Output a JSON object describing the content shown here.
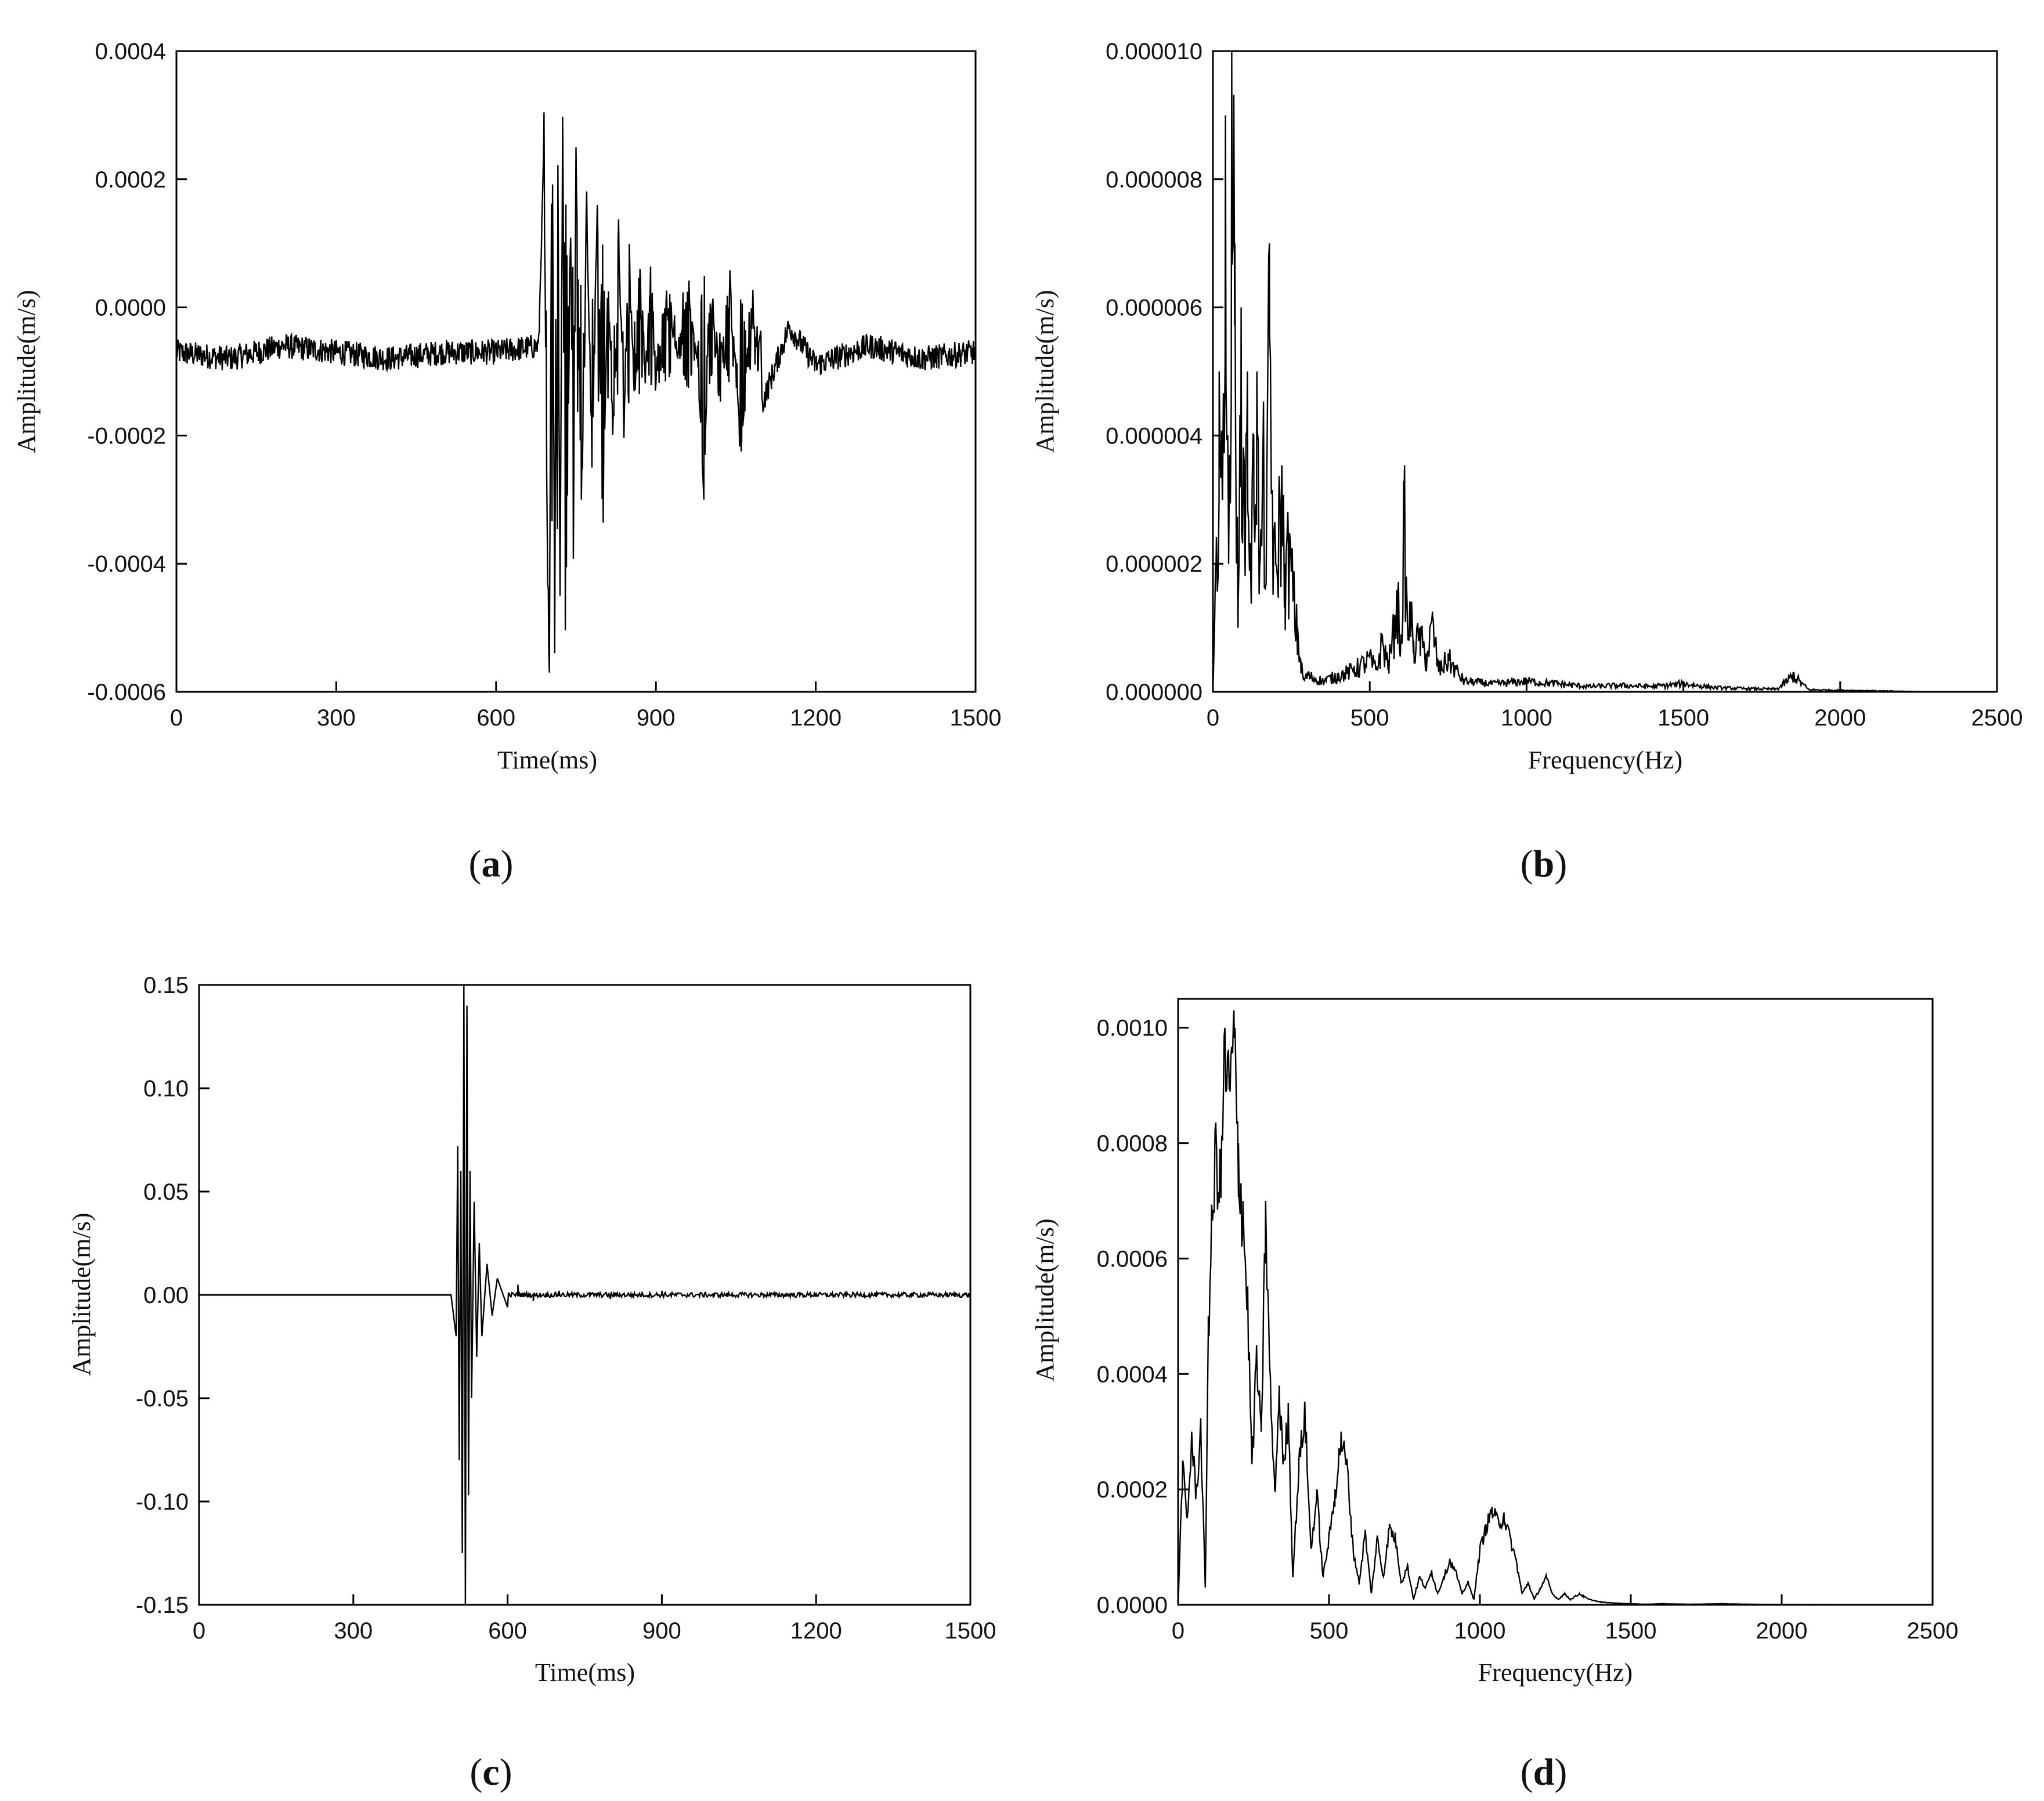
{
  "chart_data": [
    {
      "type": "line",
      "panel_label": "a",
      "xlabel": "Time(ms)",
      "ylabel": "Amplitude(m/s)",
      "xlim": [
        0,
        1500
      ],
      "ylim": [
        -0.0006,
        0.0004
      ],
      "xticks": [
        0,
        300,
        600,
        900,
        1200,
        1500
      ],
      "xtick_labels": [
        "0",
        "300",
        "600",
        "900",
        "1200",
        "1500"
      ],
      "yticks": [
        -0.0006,
        -0.0004,
        -0.0002,
        0.0,
        0.0002,
        0.0004
      ],
      "ytick_labels": [
        "-0.0006",
        "-0.0004",
        "-0.0002",
        "0.0000",
        "0.0002",
        "0.0004"
      ],
      "grid": false,
      "baseline": -7e-05,
      "noise_amplitude": 4e-05,
      "series": [
        {
          "x": [
            0,
            100,
            200,
            300,
            400,
            500,
            600,
            680,
            690,
            695,
            700,
            705,
            710,
            715,
            720,
            725,
            730,
            740,
            745,
            750,
            760,
            770,
            780,
            790,
            800,
            810,
            820,
            830,
            840,
            850,
            860,
            870,
            880,
            890,
            900,
            920,
            940,
            960,
            980,
            990,
            1000,
            1020,
            1040,
            1060,
            1080,
            1100,
            1150,
            1200,
            1300,
            1400,
            1500
          ],
          "y": [
            -7e-05,
            -8e-05,
            -6e-05,
            -7e-05,
            -8e-05,
            -7e-05,
            -7e-05,
            -6e-05,
            0.00027,
            -0.00029,
            -0.00057,
            0.00037,
            -0.00052,
            0.00039,
            -0.00045,
            0.0003,
            -0.00052,
            0.00014,
            -0.0004,
            0.00025,
            -0.0003,
            0.00015,
            -0.00025,
            0.00016,
            -0.00035,
            5e-05,
            -0.0002,
            0.0001,
            -0.00018,
            9e-05,
            -0.00015,
            6e-05,
            -0.0001,
            3e-05,
            -0.00012,
            2e-05,
            -8e-05,
            3e-05,
            -0.0001,
            -0.0003,
            2e-05,
            -0.00012,
            3e-05,
            -0.00022,
            1e-05,
            -0.00015,
            -3e-05,
            -9e-05,
            -6e-05,
            -8e-05,
            -7e-05
          ]
        }
      ]
    },
    {
      "type": "line",
      "panel_label": "b",
      "xlabel": "Frequency(Hz)",
      "ylabel": "Amplitude(m/s)",
      "xlim": [
        0,
        2500
      ],
      "ylim": [
        0,
        1e-05
      ],
      "xticks": [
        0,
        500,
        1000,
        1500,
        2000,
        2500
      ],
      "xtick_labels": [
        "0",
        "500",
        "1000",
        "1500",
        "2000",
        "2500"
      ],
      "yticks": [
        0,
        2e-06,
        4e-06,
        6e-06,
        8e-06,
        1e-05
      ],
      "ytick_labels": [
        "0.000000",
        "0.000002",
        "0.000004",
        "0.000006",
        "0.000008",
        "0.000010"
      ],
      "grid": false,
      "series": [
        {
          "x": [
            0,
            10,
            20,
            30,
            40,
            50,
            60,
            70,
            80,
            90,
            100,
            110,
            120,
            130,
            140,
            150,
            160,
            170,
            180,
            190,
            200,
            210,
            220,
            230,
            240,
            250,
            260,
            270,
            280,
            290,
            300,
            350,
            400,
            450,
            500,
            520,
            540,
            560,
            580,
            590,
            600,
            610,
            620,
            630,
            640,
            660,
            680,
            700,
            720,
            750,
            800,
            900,
            1000,
            1100,
            1200,
            1300,
            1400,
            1500,
            1600,
            1700,
            1800,
            1850,
            1900,
            2000,
            2100,
            2200,
            2300,
            2400,
            2500
          ],
          "y": [
            0,
            2e-06,
            5e-06,
            3e-06,
            9e-06,
            2e-06,
            1e-05,
            7e-06,
            1e-06,
            6e-06,
            3e-06,
            5e-06,
            2e-06,
            4e-06,
            5e-06,
            2e-06,
            4e-06,
            2e-06,
            7e-06,
            3e-06,
            2e-06,
            3e-06,
            3.5e-06,
            2e-06,
            2.5e-06,
            2.2e-06,
            1.5e-06,
            1e-06,
            5e-07,
            2e-07,
            3e-07,
            2e-07,
            3e-07,
            4e-07,
            6e-07,
            4e-07,
            9e-07,
            5e-07,
            1.2e-06,
            1.6e-06,
            8e-07,
            3.2e-06,
            1.1e-06,
            1.4e-06,
            8e-07,
            1e-06,
            6e-07,
            1.2e-06,
            4e-07,
            6e-07,
            2e-07,
            1.5e-07,
            2e-07,
            1.5e-07,
            1e-07,
            1.2e-07,
            1e-07,
            1.5e-07,
            8e-08,
            6e-08,
            5e-08,
            3e-07,
            4e-08,
            3e-08,
            2e-08,
            1e-08,
            0,
            0,
            0
          ]
        }
      ]
    },
    {
      "type": "line",
      "panel_label": "c",
      "xlabel": "Time(ms)",
      "ylabel": "Amplitude(m/s)",
      "xlim": [
        0,
        1500
      ],
      "ylim": [
        -0.15,
        0.15
      ],
      "xticks": [
        0,
        300,
        600,
        900,
        1200,
        1500
      ],
      "xtick_labels": [
        "0",
        "300",
        "600",
        "900",
        "1200",
        "1500"
      ],
      "yticks": [
        -0.15,
        -0.1,
        -0.05,
        0.0,
        0.05,
        0.1,
        0.15
      ],
      "ytick_labels": [
        "-0.15",
        "-0.10",
        "-0.05",
        "0.00",
        "0.05",
        "0.10",
        "0.15"
      ],
      "grid": false,
      "series": [
        {
          "x": [
            0,
            490,
            500,
            503,
            506,
            509,
            512,
            515,
            518,
            521,
            524,
            527,
            530,
            535,
            540,
            545,
            550,
            560,
            570,
            580,
            600,
            620,
            650,
            700,
            800,
            900,
            1000,
            1200,
            1500
          ],
          "y": [
            0,
            0,
            -0.02,
            0.072,
            -0.08,
            0.06,
            -0.125,
            0.15,
            -0.15,
            0.14,
            -0.097,
            0.06,
            -0.05,
            0.045,
            -0.03,
            0.025,
            -0.02,
            0.015,
            -0.01,
            0.008,
            -0.006,
            0.005,
            -0.003,
            0.002,
            -0.002,
            0.002,
            -0.001,
            0.001,
            0
          ]
        }
      ]
    },
    {
      "type": "line",
      "panel_label": "d",
      "xlabel": "Frequency(Hz)",
      "ylabel": "Amplitude(m/s)",
      "xlim": [
        0,
        2500
      ],
      "ylim": [
        0,
        0.00105
      ],
      "xticks": [
        0,
        500,
        1000,
        1500,
        2000,
        2500
      ],
      "xtick_labels": [
        "0",
        "500",
        "1000",
        "1500",
        "2000",
        "2500"
      ],
      "yticks": [
        0,
        0.0002,
        0.0004,
        0.0006,
        0.0008,
        0.001
      ],
      "ytick_labels": [
        "0.0000",
        "0.0002",
        "0.0004",
        "0.0006",
        "0.0008",
        "0.0010"
      ],
      "grid": false,
      "series": [
        {
          "x": [
            0,
            15,
            30,
            45,
            60,
            75,
            90,
            100,
            110,
            125,
            140,
            155,
            170,
            185,
            200,
            215,
            230,
            245,
            260,
            275,
            290,
            305,
            320,
            335,
            350,
            365,
            380,
            400,
            420,
            440,
            460,
            480,
            500,
            520,
            540,
            560,
            580,
            600,
            620,
            640,
            660,
            680,
            700,
            720,
            740,
            760,
            780,
            800,
            820,
            840,
            860,
            880,
            900,
            920,
            940,
            960,
            980,
            1000,
            1020,
            1040,
            1060,
            1080,
            1100,
            1120,
            1140,
            1160,
            1180,
            1200,
            1220,
            1240,
            1260,
            1280,
            1300,
            1330,
            1360,
            1400,
            1450,
            1500,
            1550,
            1600,
            1700,
            1800,
            1900,
            2000,
            2500
          ],
          "y": [
            0,
            0.00025,
            0.00015,
            0.0003,
            0.0002,
            0.00032,
            3e-05,
            0.0005,
            0.00065,
            0.00083,
            0.00075,
            0.001,
            0.00092,
            0.00103,
            0.0008,
            0.0007,
            0.00055,
            0.00025,
            0.00045,
            0.0003,
            0.0007,
            0.0004,
            0.0002,
            0.00038,
            0.00025,
            0.00035,
            5e-05,
            0.00025,
            0.00035,
            0.0001,
            0.0002,
            5e-05,
            0.00012,
            0.0002,
            0.0003,
            0.00025,
            0.0001,
            4e-05,
            0.00013,
            2e-05,
            0.00012,
            5e-05,
            0.00014,
            0.00012,
            4e-05,
            7e-05,
            1e-05,
            5e-05,
            3e-05,
            6e-05,
            2e-05,
            5e-05,
            8e-05,
            6e-05,
            2e-05,
            4e-05,
            1e-05,
            0.0001,
            0.00014,
            0.00017,
            0.00015,
            0.00016,
            0.00012,
            8e-05,
            2e-05,
            4e-05,
            1e-05,
            3e-05,
            5e-05,
            2e-05,
            1e-05,
            2e-05,
            1e-05,
            2e-05,
            1e-05,
            5e-06,
            3e-06,
            2e-06,
            1e-06,
            2e-06,
            1e-06,
            2e-06,
            1e-06,
            5e-07,
            0
          ]
        }
      ]
    }
  ]
}
